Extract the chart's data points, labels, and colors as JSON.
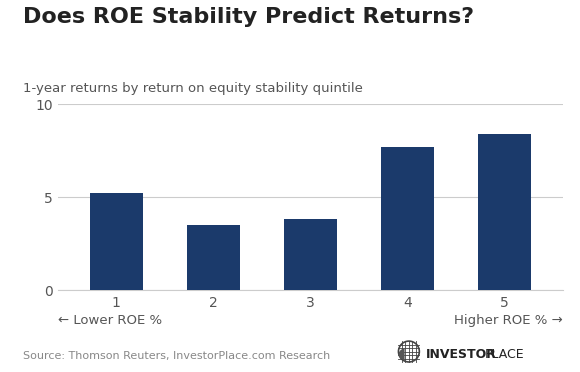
{
  "title": "Does ROE Stability Predict Returns?",
  "subtitle": "1-year returns by return on equity stability quintile",
  "categories": [
    "1",
    "2",
    "3",
    "4",
    "5"
  ],
  "values": [
    5.2,
    3.5,
    3.8,
    7.7,
    8.4
  ],
  "bar_color": "#1b3a6b",
  "ylim": [
    0,
    10
  ],
  "yticks": [
    0,
    5,
    10
  ],
  "xlabel_left": "← Lower ROE %",
  "xlabel_right": "Higher ROE % →",
  "source_text": "Source: Thomson Reuters, InvestorPlace.com Research",
  "background_color": "#ffffff",
  "title_fontsize": 16,
  "subtitle_fontsize": 9.5,
  "tick_fontsize": 10,
  "source_fontsize": 8,
  "xlabel_fontsize": 9.5,
  "bar_width": 0.55,
  "grid_color": "#cccccc",
  "tick_color": "#555555",
  "title_color": "#222222",
  "subtitle_color": "#555555",
  "source_color": "#888888",
  "logo_bold": "INVESTOR",
  "logo_regular": "PLACE"
}
